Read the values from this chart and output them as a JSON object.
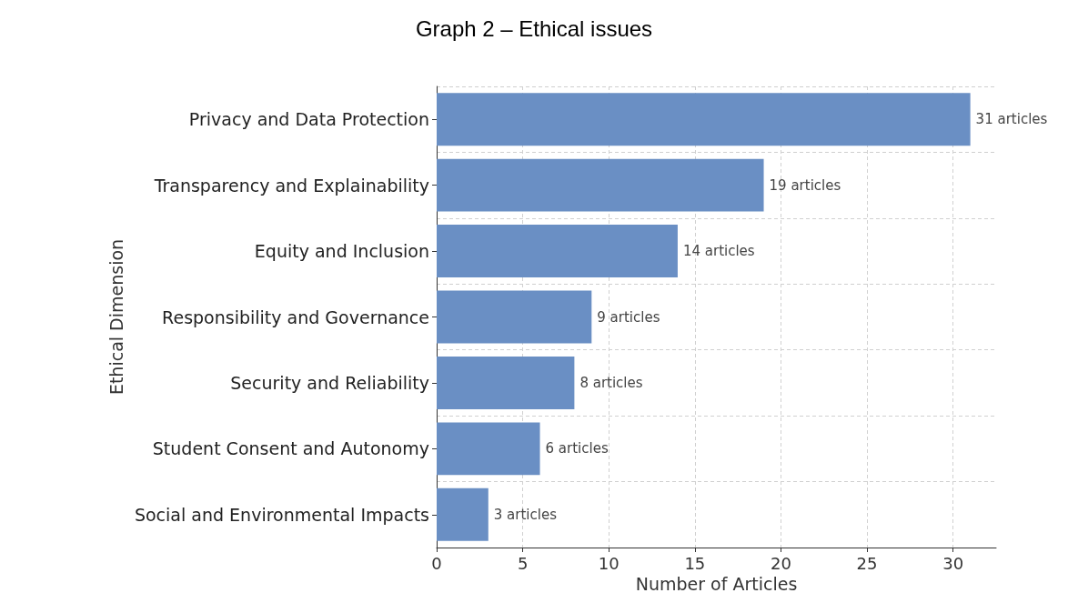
{
  "chart_data": {
    "type": "bar",
    "orientation": "horizontal",
    "title": "Graph 2 – Ethical issues",
    "xlabel": "Number of Articles",
    "ylabel": "Ethical Dimension",
    "categories": [
      "Privacy and Data Protection",
      "Transparency and Explainability",
      "Equity and Inclusion",
      "Responsibility and Governance",
      "Security and Reliability",
      "Student Consent and Autonomy",
      "Social and Environmental Impacts"
    ],
    "values": [
      31,
      19,
      14,
      9,
      8,
      6,
      3
    ],
    "value_labels": [
      "31 articles",
      "19 articles",
      "14 articles",
      "9 articles",
      "8 articles",
      "6 articles",
      "3 articles"
    ],
    "color": "#6a8fc4",
    "xlim": [
      0,
      32.5
    ],
    "xticks": [
      0,
      5,
      10,
      15,
      20,
      25,
      30
    ],
    "grid": true
  }
}
